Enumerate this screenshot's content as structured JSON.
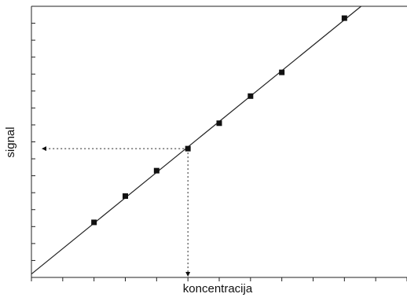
{
  "chart_data": {
    "type": "scatter",
    "title": "",
    "xlabel": "koncentracija",
    "ylabel": "signal",
    "xlim": [
      0,
      12
    ],
    "ylim": [
      0,
      16
    ],
    "x_ticks": [
      0,
      1,
      2,
      3,
      4,
      5,
      6,
      7,
      8,
      9,
      10,
      11,
      12
    ],
    "y_ticks": [
      0,
      1,
      2,
      3,
      4,
      5,
      6,
      7,
      8,
      9,
      10,
      11,
      12,
      13,
      14,
      15,
      16
    ],
    "tick_labels_shown": false,
    "grid": false,
    "series": [
      {
        "points": [
          {
            "x": 2.0,
            "y": 3.25
          },
          {
            "x": 3.0,
            "y": 4.8
          },
          {
            "x": 4.0,
            "y": 6.3
          },
          {
            "x": 5.0,
            "y": 7.6
          },
          {
            "x": 6.0,
            "y": 9.1
          },
          {
            "x": 7.0,
            "y": 10.7
          },
          {
            "x": 8.0,
            "y": 12.1
          },
          {
            "x": 10.0,
            "y": 15.3
          }
        ],
        "marker": "square",
        "color": "#111111"
      }
    ],
    "fit_line": {
      "type": "linear",
      "slope": 1.5,
      "intercept": 0.2,
      "color": "#222222"
    },
    "reading": {
      "x": 5.0,
      "y": 7.6,
      "style": "dotted",
      "arrows": [
        "to-y-axis",
        "to-x-axis"
      ]
    }
  }
}
